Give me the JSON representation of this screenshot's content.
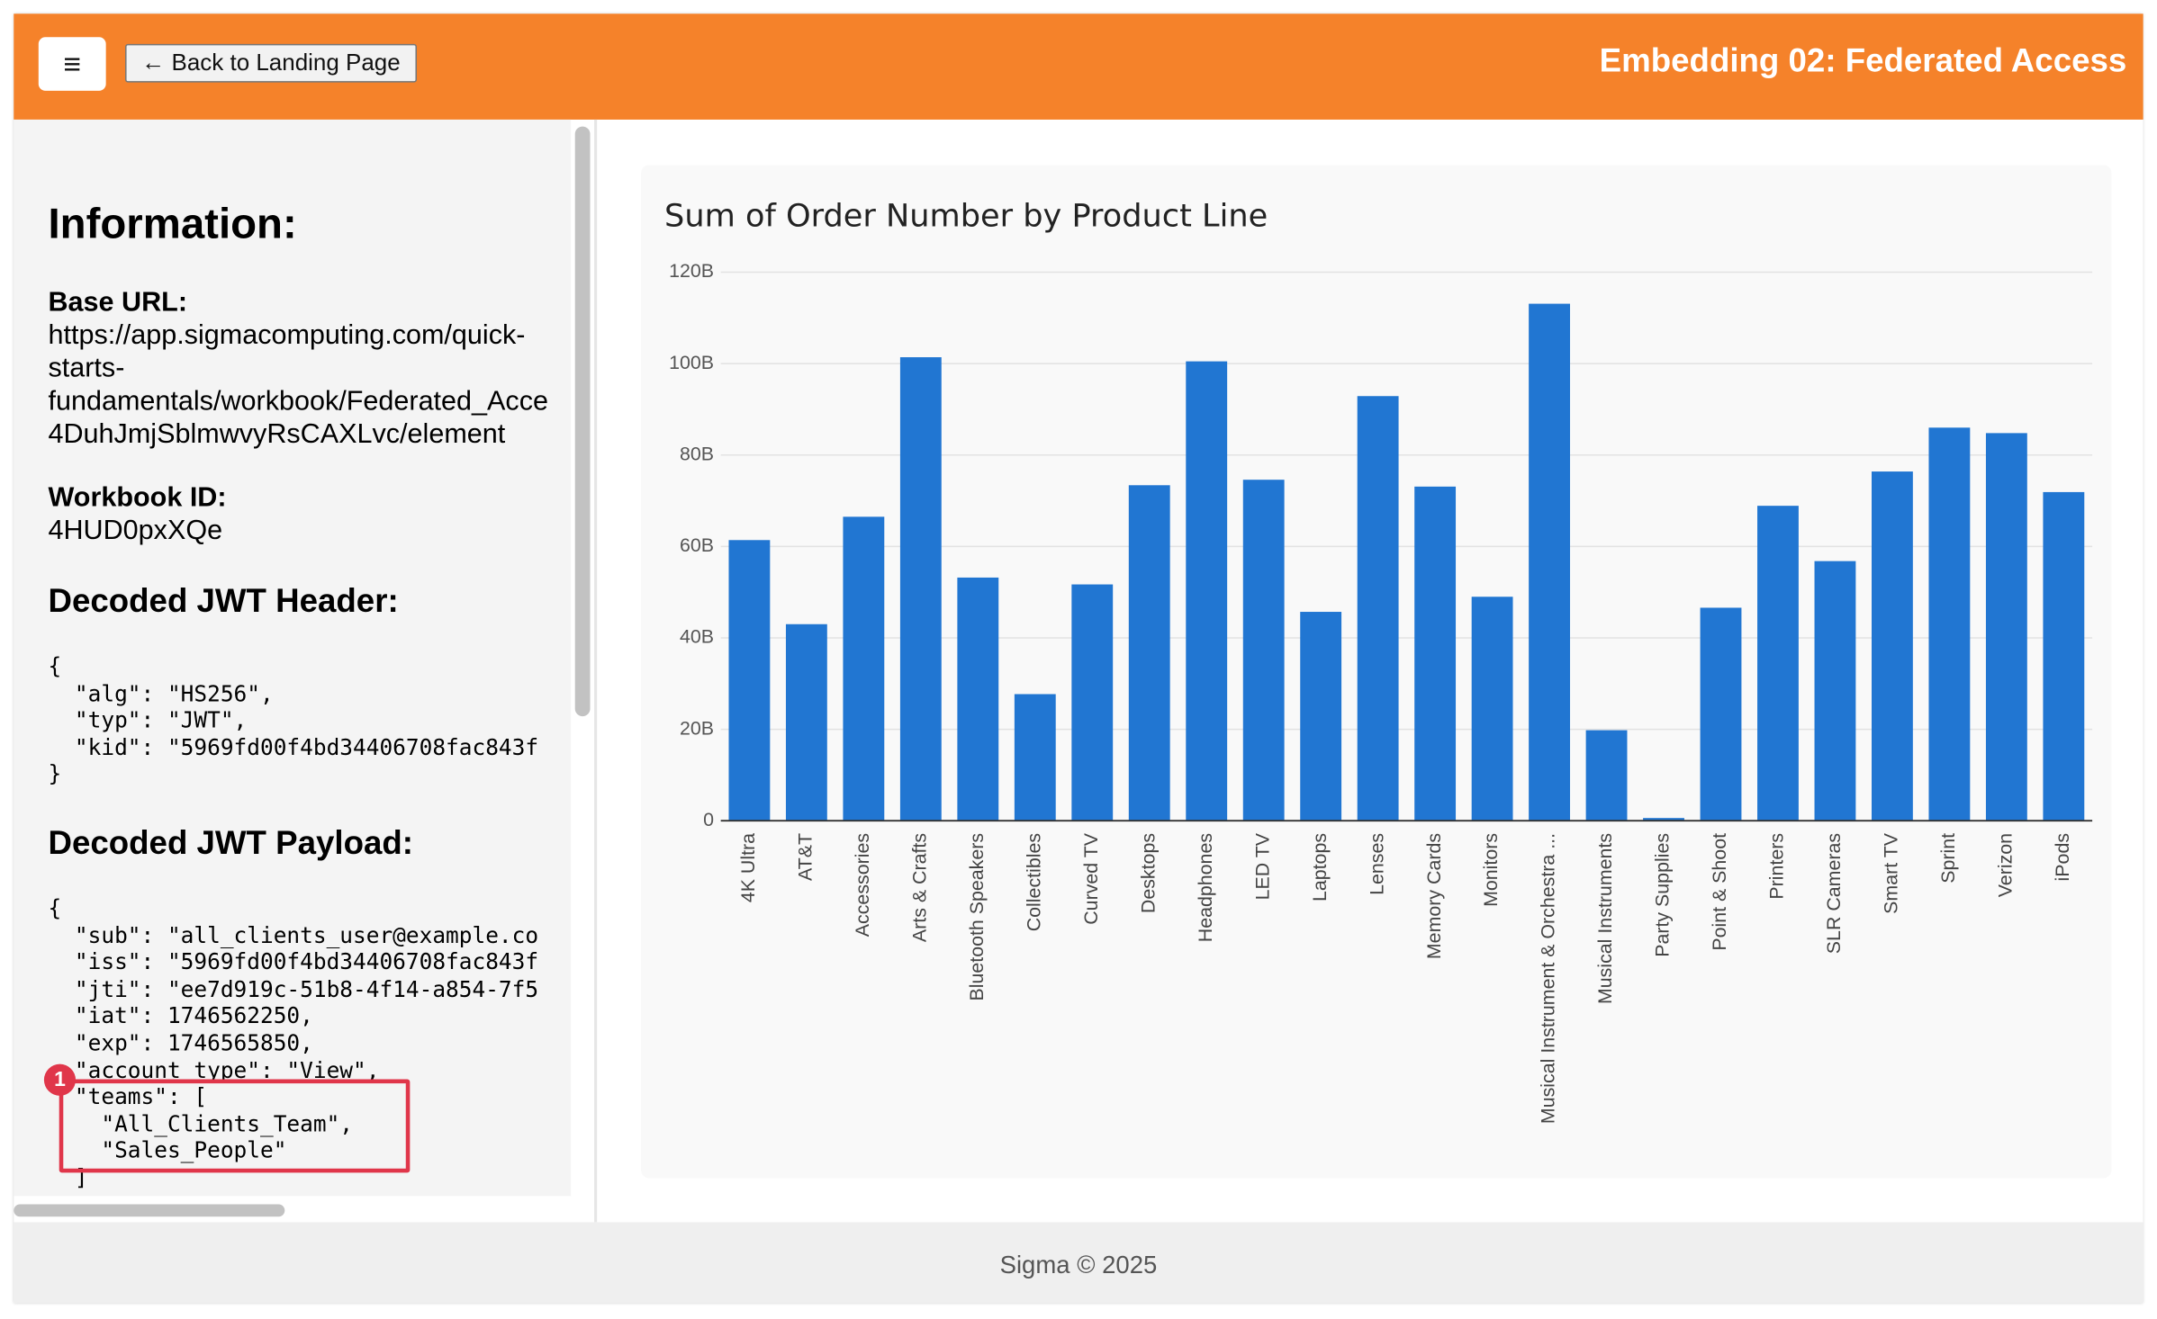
{
  "header": {
    "menu_icon": "≡",
    "back_button": "← Back to Landing Page",
    "title": "Embedding 02: Federated Access"
  },
  "sidebar": {
    "heading": "Information:",
    "base_url_label": "Base URL:",
    "base_url_lines": [
      "https://app.sigmacomputing.com/quick-",
      "starts-",
      "fundamentals/workbook/Federated_Acce",
      "4DuhJmjSblmwvyRsCAXLvc/element"
    ],
    "workbook_id_label": "Workbook ID:",
    "workbook_id": "4HUD0pxXQe",
    "jwt_header_heading": "Decoded JWT Header:",
    "jwt_header_lines": [
      "{",
      "  \"alg\": \"HS256\",",
      "  \"typ\": \"JWT\",",
      "  \"kid\": \"5969fd00f4bd34406708fac843f",
      "}"
    ],
    "jwt_payload_heading": "Decoded JWT Payload:",
    "jwt_payload_lines": [
      "{",
      "  \"sub\": \"all_clients_user@example.co",
      "  \"iss\": \"5969fd00f4bd34406708fac843f",
      "  \"jti\": \"ee7d919c-51b8-4f14-a854-7f5",
      "  \"iat\": 1746562250,",
      "  \"exp\": 1746565850,",
      "  \"account_type\": \"View\",",
      "  \"teams\": [",
      "    \"All_Clients_Team\",",
      "    \"Sales_People\"",
      "  ]"
    ],
    "annotation_badge": "1"
  },
  "chart_data": {
    "type": "bar",
    "title": "Sum of Order Number by Product Line",
    "categories": [
      "4K Ultra",
      "AT&T",
      "Accessories",
      "Arts & Crafts",
      "Bluetooth Speakers",
      "Collectibles",
      "Curved TV",
      "Desktops",
      "Headphones",
      "LED TV",
      "Laptops",
      "Lenses",
      "Memory Cards",
      "Monitors",
      "Musical Instrument & Orchestra ...",
      "Musical Instruments",
      "Party Supplies",
      "Point & Shoot",
      "Printers",
      "SLR Cameras",
      "Smart TV",
      "Sprint",
      "Verizon",
      "iPods"
    ],
    "values": [
      61.4,
      43,
      66.5,
      101.4,
      53.2,
      27.7,
      51.7,
      73.4,
      100.5,
      74.6,
      45.7,
      92.9,
      73.1,
      49,
      113.1,
      19.8,
      0.6,
      46.6,
      68.9,
      56.8,
      76.4,
      86,
      84.8,
      71.9
    ],
    "color": "#2176d2",
    "ylim": [
      0,
      120
    ],
    "yticks": [
      0,
      {
        "value": 20,
        "label": "20B"
      },
      {
        "value": 40,
        "label": "40B"
      },
      {
        "value": 60,
        "label": "60B"
      },
      {
        "value": 80,
        "label": "80B"
      },
      {
        "value": 100,
        "label": "100B"
      },
      {
        "value": 120,
        "label": "120B"
      }
    ],
    "grid": true
  },
  "footer": {
    "text": "Sigma © 2025"
  }
}
